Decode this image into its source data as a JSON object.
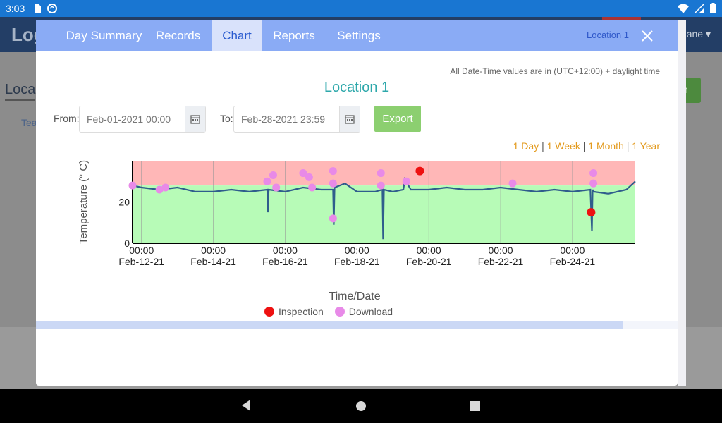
{
  "status_bar": {
    "time": "3:03",
    "icons": [
      "sd-card-icon",
      "sync-icon",
      "wifi-icon",
      "signal-icon",
      "battery-icon"
    ]
  },
  "background_app": {
    "logo": "Log",
    "user": "ane",
    "location_heading": "Loca",
    "sub_text": "Tea",
    "button_text": "n"
  },
  "modal": {
    "tabs": [
      {
        "label": "Day Summary",
        "active": false
      },
      {
        "label": "Records",
        "active": false
      },
      {
        "label": "Chart",
        "active": true
      },
      {
        "label": "Reports",
        "active": false
      },
      {
        "label": "Settings",
        "active": false
      }
    ],
    "location_label": "Location 1",
    "timezone_note": "All Date-Time values are in (UTC+12:00) + daylight time",
    "title": "Location 1",
    "from_label": "From:",
    "from_value": "Feb-01-2021 00:00",
    "to_label": "To:",
    "to_value": "Feb-28-2021 23:59",
    "export_label": "Export",
    "ranges": [
      "1 Day",
      "1 Week",
      "1 Month",
      "1 Year"
    ],
    "range_separator": "|",
    "colors": {
      "tab_bar": "#8aabf5",
      "accent": "#2ea8ab",
      "range_link": "#e39a1d",
      "alarm_band": "#ffb7b7",
      "ok_band": "#b7fbb7",
      "line": "#2f5d8c",
      "inspection": "#ee1111",
      "download": "#e88ae8"
    }
  },
  "chart_data": {
    "type": "line",
    "ylabel": "Temperature (° C)",
    "xlabel": "Time/Date",
    "x_ticks": [
      {
        "time": "00:00",
        "date": "Feb-12-21"
      },
      {
        "time": "00:00",
        "date": "Feb-14-21"
      },
      {
        "time": "00:00",
        "date": "Feb-16-21"
      },
      {
        "time": "00:00",
        "date": "Feb-18-21"
      },
      {
        "time": "00:00",
        "date": "Feb-20-21"
      },
      {
        "time": "00:00",
        "date": "Feb-22-21"
      },
      {
        "time": "00:00",
        "date": "Feb-24-21"
      }
    ],
    "xlim": [
      "Feb-11-21 18:00",
      "Feb-25-21 18:00"
    ],
    "y_ticks": [
      0,
      20
    ],
    "ylim": [
      0,
      40
    ],
    "upper_alarm": 28,
    "bands": [
      {
        "name": "alarm",
        "from": 28,
        "to": 40
      },
      {
        "name": "ok",
        "from": 0,
        "to": 28
      }
    ],
    "grid": true,
    "series": [
      {
        "values_x": [
          "Feb-11-21 18:00",
          "Feb-12-21 00:00",
          "Feb-12-21 12:00",
          "Feb-13-21 00:00",
          "Feb-13-21 12:00",
          "Feb-14-21 00:00",
          "Feb-14-21 12:00",
          "Feb-15-21 00:00",
          "Feb-15-21 12:00",
          "Feb-15-21 12:30",
          "Feb-15-21 13:00",
          "Feb-16-21 00:00",
          "Feb-16-21 12:00",
          "Feb-17-21 00:00",
          "Feb-17-21 08:00",
          "Feb-17-21 08:30",
          "Feb-17-21 09:00",
          "Feb-17-21 16:00",
          "Feb-18-21 00:00",
          "Feb-18-21 12:00",
          "Feb-18-21 17:00",
          "Feb-18-21 17:30",
          "Feb-18-21 18:00",
          "Feb-19-21 00:00",
          "Feb-19-21 07:00",
          "Feb-19-21 08:00",
          "Feb-19-21 12:00",
          "Feb-20-21 00:00",
          "Feb-20-21 12:00",
          "Feb-21-21 00:00",
          "Feb-21-21 12:00",
          "Feb-22-21 00:00",
          "Feb-22-21 12:00",
          "Feb-23-21 00:00",
          "Feb-23-21 12:00",
          "Feb-24-21 00:00",
          "Feb-24-21 12:00",
          "Feb-24-21 13:00",
          "Feb-24-21 13:30",
          "Feb-24-21 14:00",
          "Feb-25-21 00:00",
          "Feb-25-21 12:00",
          "Feb-25-21 18:00"
        ],
        "values": [
          28,
          27,
          26,
          27,
          25,
          25,
          26,
          25,
          26,
          15,
          26,
          25,
          27,
          26,
          26,
          9,
          27,
          29,
          25,
          25,
          26,
          2,
          26,
          25,
          26,
          31,
          26,
          26,
          27,
          26,
          26,
          27,
          26,
          25,
          26,
          25,
          26,
          6,
          26,
          25,
          24,
          26,
          30
        ]
      }
    ],
    "events": [
      {
        "type": "Inspection",
        "x": "Feb-19-21 18:00",
        "y": 35
      },
      {
        "type": "Inspection",
        "x": "Feb-24-21 12:30",
        "y": 15
      },
      {
        "type": "Download",
        "x": "Feb-11-21 18:00",
        "y": 28
      },
      {
        "type": "Download",
        "x": "Feb-12-21 12:00",
        "y": 26
      },
      {
        "type": "Download",
        "x": "Feb-12-21 16:00",
        "y": 27
      },
      {
        "type": "Download",
        "x": "Feb-15-21 12:00",
        "y": 30
      },
      {
        "type": "Download",
        "x": "Feb-15-21 16:00",
        "y": 33
      },
      {
        "type": "Download",
        "x": "Feb-15-21 18:00",
        "y": 27
      },
      {
        "type": "Download",
        "x": "Feb-16-21 12:00",
        "y": 34
      },
      {
        "type": "Download",
        "x": "Feb-16-21 16:00",
        "y": 32
      },
      {
        "type": "Download",
        "x": "Feb-16-21 18:00",
        "y": 27
      },
      {
        "type": "Download",
        "x": "Feb-17-21 08:00",
        "y": 35
      },
      {
        "type": "Download",
        "x": "Feb-17-21 08:00",
        "y": 29
      },
      {
        "type": "Download",
        "x": "Feb-17-21 08:00",
        "y": 12
      },
      {
        "type": "Download",
        "x": "Feb-18-21 16:00",
        "y": 34
      },
      {
        "type": "Download",
        "x": "Feb-18-21 16:00",
        "y": 28
      },
      {
        "type": "Download",
        "x": "Feb-19-21 09:00",
        "y": 30
      },
      {
        "type": "Download",
        "x": "Feb-22-21 08:00",
        "y": 29
      },
      {
        "type": "Download",
        "x": "Feb-24-21 14:00",
        "y": 34
      },
      {
        "type": "Download",
        "x": "Feb-24-21 14:00",
        "y": 29
      }
    ],
    "legend": [
      {
        "name": "Inspection",
        "color": "#ee1111"
      },
      {
        "name": "Download",
        "color": "#e88ae8"
      }
    ],
    "legend_position": "bottom-center"
  }
}
